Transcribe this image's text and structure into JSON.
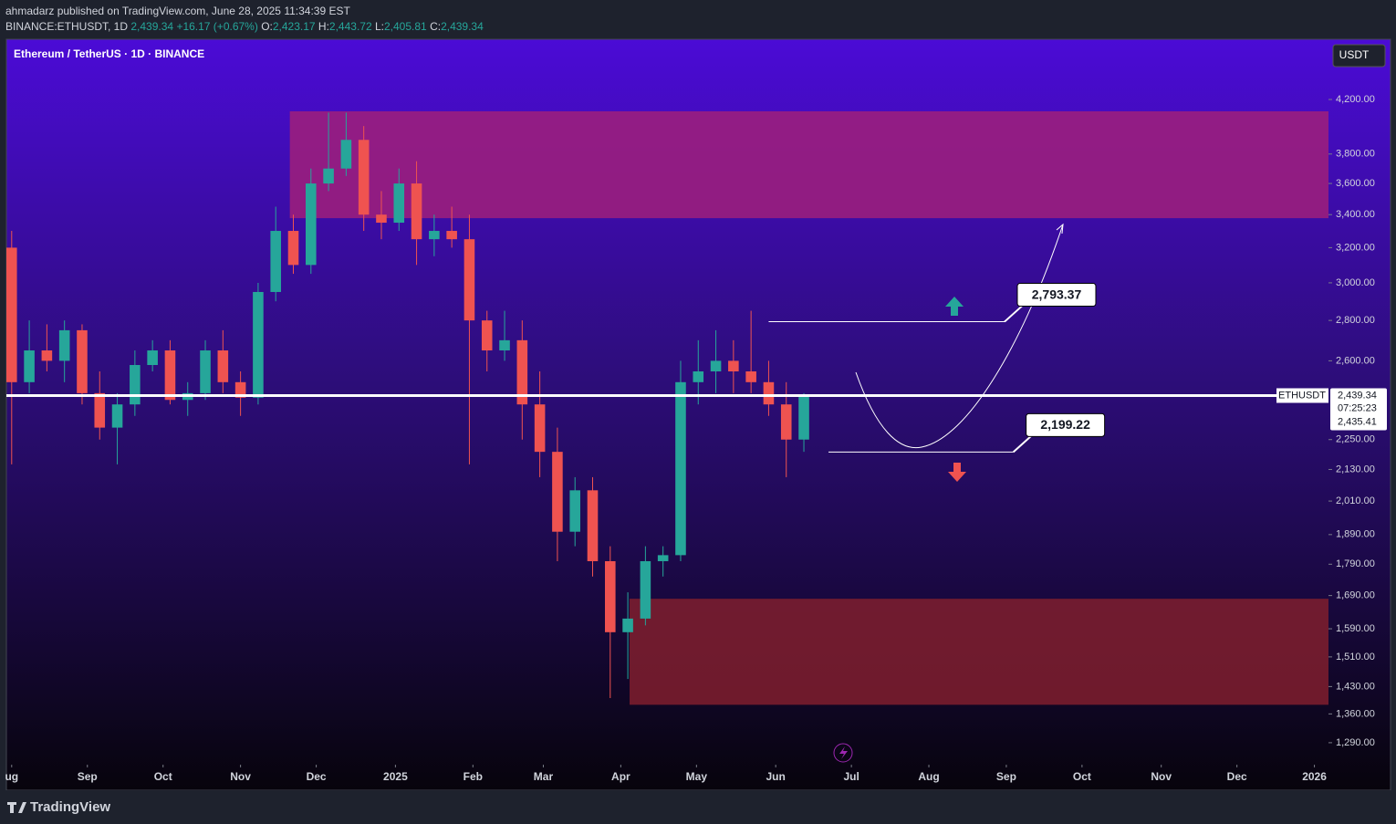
{
  "header": {
    "line1": "ahmadarz published on TradingView.com, June 28, 2025 11:34:39 EST",
    "symbol": "BINANCE:ETHUSDT, 1D",
    "last": "2,439.34",
    "change": "+16.17 (+0.67%)",
    "o_label": "O:",
    "o": "2,423.17",
    "h_label": "H:",
    "h": "2,443.72",
    "l_label": "L:",
    "l": "2,405.81",
    "c_label": "C:",
    "c": "2,439.34"
  },
  "currency_button": "USDT",
  "footer": {
    "brand": "TradingView"
  },
  "chart_data": {
    "type": "candlestick",
    "title": "Ethereum / TetherUS · 1D · BINANCE",
    "log_scale": true,
    "x": [
      0,
      1,
      2,
      3,
      4,
      5,
      6,
      7,
      8,
      9,
      10,
      11,
      12,
      13,
      14,
      15,
      16,
      17,
      18,
      19,
      20,
      21,
      22,
      23,
      24,
      25,
      26,
      27,
      28,
      29,
      30,
      31,
      32,
      33,
      34,
      35,
      36,
      37,
      38,
      39,
      40,
      41,
      42,
      43,
      44,
      45
    ],
    "open": [
      3200,
      2500,
      2650,
      2600,
      2750,
      2450,
      2300,
      2400,
      2580,
      2650,
      2420,
      2450,
      2650,
      2500,
      2430,
      2950,
      3300,
      3100,
      3600,
      3700,
      3900,
      3400,
      3350,
      3600,
      3250,
      3300,
      3250,
      2800,
      2650,
      2700,
      2400,
      2200,
      1900,
      2050,
      1800,
      1580,
      1620,
      1800,
      1820,
      2500,
      2550,
      2600,
      2550,
      2500,
      2400,
      2250
    ],
    "high": [
      3300,
      2800,
      2780,
      2800,
      2780,
      2550,
      2450,
      2650,
      2700,
      2700,
      2500,
      2700,
      2750,
      2550,
      3000,
      3450,
      3400,
      3700,
      4100,
      4100,
      4000,
      3550,
      3700,
      3750,
      3400,
      3450,
      3400,
      2850,
      2850,
      2800,
      2550,
      2300,
      2100,
      2100,
      1850,
      1700,
      1850,
      1850,
      2600,
      2700,
      2750,
      2700,
      2850,
      2600,
      2500,
      2450
    ],
    "low": [
      2150,
      2450,
      2550,
      2500,
      2400,
      2250,
      2150,
      2350,
      2550,
      2400,
      2350,
      2420,
      2450,
      2350,
      2400,
      2900,
      3050,
      3050,
      3550,
      3650,
      3300,
      3250,
      3300,
      3100,
      3150,
      3200,
      2150,
      2550,
      2600,
      2250,
      2100,
      1800,
      1850,
      1750,
      1400,
      1450,
      1600,
      1750,
      1800,
      2400,
      2450,
      2450,
      2450,
      2350,
      2100,
      2200
    ],
    "close": [
      2500,
      2650,
      2600,
      2750,
      2450,
      2300,
      2400,
      2580,
      2650,
      2420,
      2450,
      2650,
      2500,
      2430,
      2950,
      3300,
      3100,
      3600,
      3700,
      3900,
      3400,
      3350,
      3600,
      3250,
      3300,
      3250,
      2800,
      2650,
      2700,
      2400,
      2200,
      1900,
      2050,
      1800,
      1580,
      1620,
      1800,
      1820,
      2500,
      2550,
      2600,
      2550,
      2500,
      2400,
      2250,
      2439.34
    ],
    "up_color": "#26a69a",
    "down_color": "#ef5350",
    "xlim": [
      -0.3,
      74.8
    ],
    "xticks": [
      {
        "value": 0,
        "label": "ug"
      },
      {
        "value": 4.3,
        "label": "Sep"
      },
      {
        "value": 8.6,
        "label": "Oct"
      },
      {
        "value": 13.0,
        "label": "Nov"
      },
      {
        "value": 17.3,
        "label": "Dec"
      },
      {
        "value": 21.8,
        "label": "2025"
      },
      {
        "value": 26.2,
        "label": "Feb"
      },
      {
        "value": 30.2,
        "label": "Mar"
      },
      {
        "value": 34.6,
        "label": "Apr"
      },
      {
        "value": 38.9,
        "label": "May"
      },
      {
        "value": 43.4,
        "label": "Jun"
      },
      {
        "value": 47.7,
        "label": "Jul"
      },
      {
        "value": 52.1,
        "label": "Aug"
      },
      {
        "value": 56.5,
        "label": "Sep"
      },
      {
        "value": 60.8,
        "label": "Oct"
      },
      {
        "value": 65.3,
        "label": "Nov"
      },
      {
        "value": 69.6,
        "label": "Dec"
      },
      {
        "value": 74.0,
        "label": "2026"
      }
    ],
    "ylim": [
      1239,
      4691
    ],
    "yticks": [
      {
        "value": 4200,
        "label": "4,200.00"
      },
      {
        "value": 3800,
        "label": "3,800.00"
      },
      {
        "value": 3600,
        "label": "3,600.00"
      },
      {
        "value": 3400,
        "label": "3,400.00"
      },
      {
        "value": 3200,
        "label": "3,200.00"
      },
      {
        "value": 3000,
        "label": "3,000.00"
      },
      {
        "value": 2800,
        "label": "2,800.00"
      },
      {
        "value": 2600,
        "label": "2,600.00"
      },
      {
        "value": 2250,
        "label": "2,250.00"
      },
      {
        "value": 2130,
        "label": "2,130.00"
      },
      {
        "value": 2010,
        "label": "2,010.00"
      },
      {
        "value": 1890,
        "label": "1,890.00"
      },
      {
        "value": 1790,
        "label": "1,790.00"
      },
      {
        "value": 1690,
        "label": "1,690.00"
      },
      {
        "value": 1590,
        "label": "1,590.00"
      },
      {
        "value": 1510,
        "label": "1,510.00"
      },
      {
        "value": 1430,
        "label": "1,430.00"
      },
      {
        "value": 1360,
        "label": "1,360.00"
      },
      {
        "value": 1290,
        "label": "1,290.00"
      }
    ],
    "zones": [
      {
        "x": [
          15.8,
          74.8
        ],
        "y": [
          3378,
          4110
        ],
        "color": "#a0207a"
      },
      {
        "x": [
          35.1,
          74.8
        ],
        "y": [
          1383,
          1680
        ],
        "color": "#801f2e"
      }
    ],
    "price_line": {
      "value": 2439.34,
      "label": "2,439.34",
      "symbol": "ETHUSDT",
      "countdown": "07:25:23",
      "second": {
        "value": 2435.41,
        "label": "2,435.41"
      }
    },
    "levels": [
      {
        "value": 2793.37,
        "label": "2,793.37",
        "x": [
          43.0,
          56.4
        ]
      },
      {
        "value": 2199.22,
        "label": "2,199.22",
        "x": [
          46.4,
          56.9
        ]
      }
    ]
  }
}
